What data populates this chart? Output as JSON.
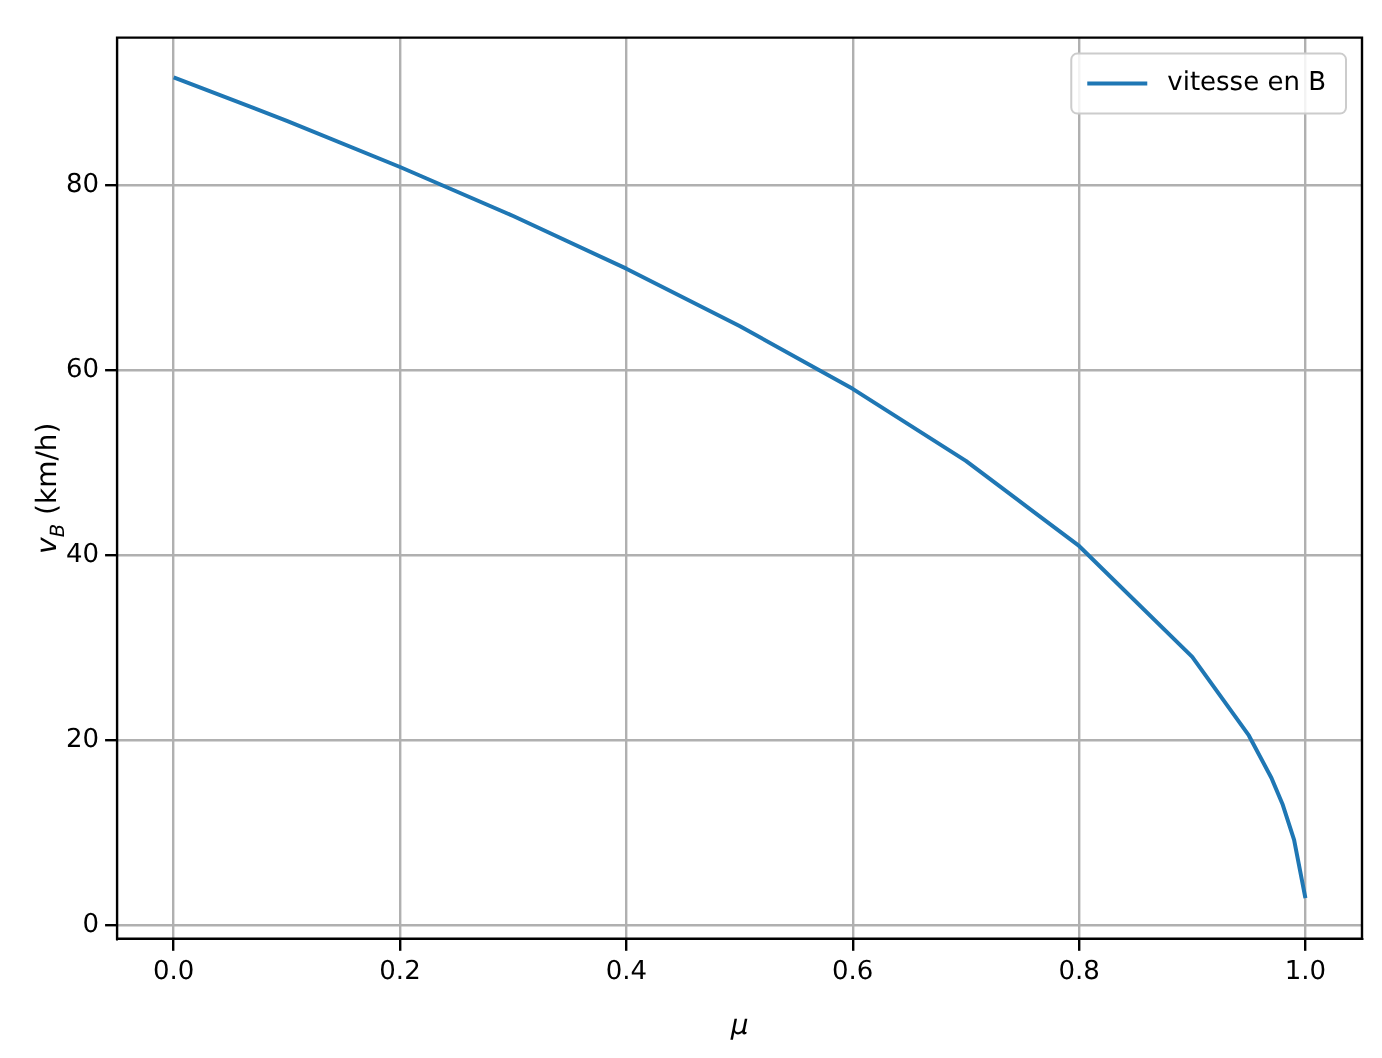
{
  "chart_data": {
    "type": "line",
    "xlabel": "μ",
    "ylabel": "v$_{B}$ (km/h)",
    "x": [
      0,
      0.1,
      0.2,
      0.3,
      0.4,
      0.5,
      0.6,
      0.7,
      0.8,
      0.9,
      0.95,
      0.97,
      0.98,
      0.99,
      1.0
    ],
    "series": [
      {
        "name": "vitesse en B",
        "color": "#1f77b4",
        "values": [
          91.7,
          87,
          82,
          76.7,
          71,
          64.8,
          58,
          50.2,
          41,
          29,
          20.5,
          15.9,
          13,
          9.2,
          2.9
        ]
      }
    ],
    "xlim": [
      -0.05,
      1.05
    ],
    "xticks": [
      {
        "value": 0,
        "label": "0.0"
      },
      {
        "value": 0.2,
        "label": "0.2"
      },
      {
        "value": 0.4,
        "label": "0.4"
      },
      {
        "value": 0.6,
        "label": "0.6"
      },
      {
        "value": 0.8,
        "label": "0.8"
      },
      {
        "value": 1,
        "label": "1.0"
      }
    ],
    "ylim": [
      -1.5,
      96
    ],
    "yticks": [
      0,
      20,
      40,
      60,
      80
    ],
    "grid": true,
    "legend": "top right",
    "marker": "none",
    "line_style": "solid"
  }
}
